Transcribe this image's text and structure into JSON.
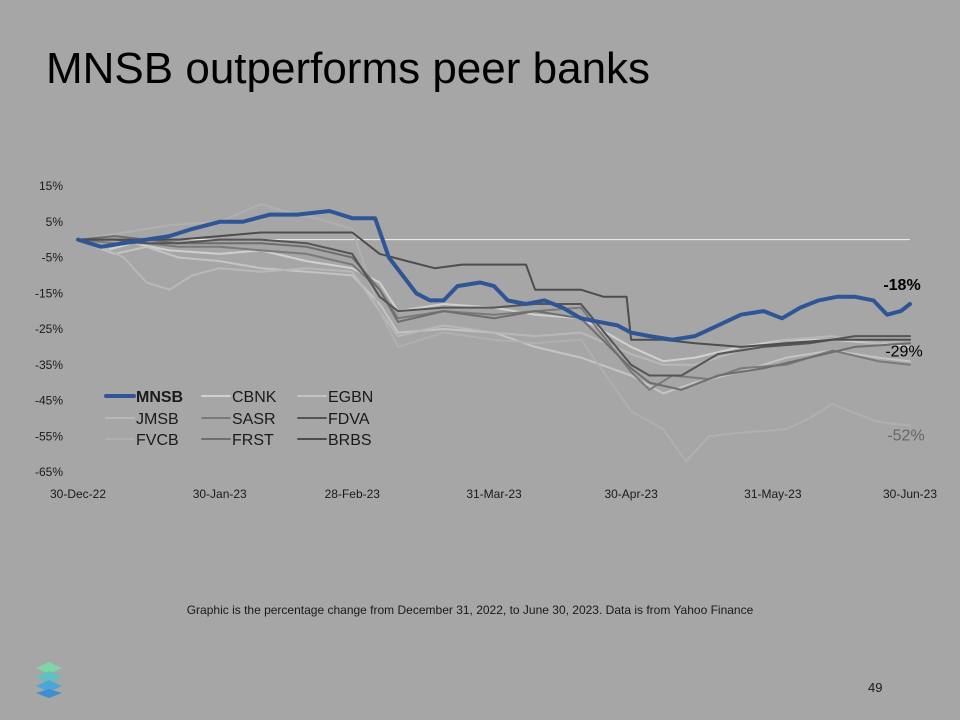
{
  "title": "MNSB outperforms peer banks",
  "footnote": "Graphic is the percentage change from December 31, 2022, to June 30, 2023. Data is from Yahoo Finance",
  "page_number": "49",
  "logo_icon": "stacked-layers-logo",
  "chart_data": {
    "type": "line",
    "title": "",
    "xlabel": "",
    "ylabel": "",
    "ylim": [
      -65,
      15
    ],
    "yticks": [
      15,
      5,
      -5,
      -15,
      -25,
      -35,
      -45,
      -55,
      -65
    ],
    "ytick_labels": [
      "15%",
      "5%",
      "-5%",
      "-15%",
      "-25%",
      "-35%",
      "-45%",
      "-55%",
      "-65%"
    ],
    "xlim": [
      0,
      182
    ],
    "xticks": [
      0,
      31,
      60,
      91,
      121,
      152,
      182
    ],
    "xtick_labels": [
      "30-Dec-22",
      "30-Jan-23",
      "28-Feb-23",
      "31-Mar-23",
      "30-Apr-23",
      "31-May-23",
      "30-Jun-23"
    ],
    "x_unit": "days since 30-Dec-22",
    "zero_line": true,
    "legend_position": "lower-left",
    "annotations": [
      {
        "text": "-18%",
        "x": 182,
        "y": -18,
        "bold": true,
        "color": "#000000"
      },
      {
        "text": "-29%",
        "x": 182,
        "y": -29,
        "bold": false,
        "color": "#000000"
      },
      {
        "text": "-52%",
        "x": 182,
        "y": -52,
        "bold": false,
        "color": "#666666"
      }
    ],
    "series": [
      {
        "name": "CBNK",
        "color": "#d0d0d0",
        "width": 2,
        "points": [
          [
            0,
            0
          ],
          [
            6,
            -3
          ],
          [
            12,
            -1
          ],
          [
            20,
            -3
          ],
          [
            31,
            -4
          ],
          [
            40,
            -3
          ],
          [
            50,
            -6
          ],
          [
            60,
            -8
          ],
          [
            66,
            -12
          ],
          [
            70,
            -20
          ],
          [
            80,
            -18
          ],
          [
            91,
            -19
          ],
          [
            100,
            -21
          ],
          [
            110,
            -22
          ],
          [
            121,
            -30
          ],
          [
            128,
            -34
          ],
          [
            135,
            -33
          ],
          [
            145,
            -30
          ],
          [
            155,
            -28
          ],
          [
            165,
            -28
          ],
          [
            175,
            -29
          ],
          [
            182,
            -30
          ]
        ]
      },
      {
        "name": "EGBN",
        "color": "#c4c4c4",
        "width": 2,
        "points": [
          [
            0,
            0
          ],
          [
            8,
            -4
          ],
          [
            15,
            -2
          ],
          [
            22,
            -5
          ],
          [
            31,
            -6
          ],
          [
            40,
            -8
          ],
          [
            50,
            -9
          ],
          [
            60,
            -10
          ],
          [
            66,
            -18
          ],
          [
            70,
            -26
          ],
          [
            80,
            -25
          ],
          [
            91,
            -26
          ],
          [
            100,
            -30
          ],
          [
            110,
            -33
          ],
          [
            121,
            -38
          ],
          [
            128,
            -43
          ],
          [
            135,
            -40
          ],
          [
            145,
            -37
          ],
          [
            155,
            -33
          ],
          [
            165,
            -31
          ],
          [
            175,
            -33
          ],
          [
            182,
            -34
          ]
        ]
      },
      {
        "name": "JMSB",
        "color": "#b8b8b8",
        "width": 2,
        "points": [
          [
            0,
            0
          ],
          [
            5,
            -2
          ],
          [
            10,
            -5
          ],
          [
            15,
            -12
          ],
          [
            20,
            -14
          ],
          [
            25,
            -10
          ],
          [
            31,
            -8
          ],
          [
            40,
            -9
          ],
          [
            50,
            -8
          ],
          [
            60,
            -9
          ],
          [
            66,
            -20
          ],
          [
            70,
            -27
          ],
          [
            80,
            -24
          ],
          [
            91,
            -26
          ],
          [
            100,
            -27
          ],
          [
            110,
            -26
          ],
          [
            121,
            -32
          ],
          [
            128,
            -35
          ],
          [
            135,
            -35
          ],
          [
            145,
            -31
          ],
          [
            155,
            -28
          ],
          [
            165,
            -27
          ],
          [
            175,
            -29
          ],
          [
            182,
            -28
          ]
        ]
      },
      {
        "name": "FVCB",
        "color": "#b0b0b0",
        "width": 2,
        "points": [
          [
            0,
            0
          ],
          [
            10,
            2
          ],
          [
            20,
            4
          ],
          [
            31,
            5
          ],
          [
            40,
            10
          ],
          [
            45,
            8
          ],
          [
            52,
            6
          ],
          [
            60,
            3
          ],
          [
            66,
            -20
          ],
          [
            70,
            -30
          ],
          [
            80,
            -26
          ],
          [
            91,
            -28
          ],
          [
            100,
            -29
          ],
          [
            110,
            -28
          ],
          [
            121,
            -48
          ],
          [
            128,
            -53
          ],
          [
            133,
            -62
          ],
          [
            138,
            -55
          ],
          [
            145,
            -54
          ],
          [
            155,
            -53
          ],
          [
            160,
            -50
          ],
          [
            165,
            -46
          ],
          [
            175,
            -51
          ],
          [
            182,
            -52
          ]
        ]
      },
      {
        "name": "SASR",
        "color": "#7a7a7a",
        "width": 2,
        "points": [
          [
            0,
            0
          ],
          [
            8,
            -1
          ],
          [
            15,
            -1
          ],
          [
            22,
            -2
          ],
          [
            31,
            -2
          ],
          [
            40,
            -3
          ],
          [
            50,
            -4
          ],
          [
            60,
            -7
          ],
          [
            66,
            -14
          ],
          [
            70,
            -22
          ],
          [
            80,
            -20
          ],
          [
            91,
            -21
          ],
          [
            100,
            -20
          ],
          [
            110,
            -19
          ],
          [
            121,
            -37
          ],
          [
            125,
            -42
          ],
          [
            130,
            -38
          ],
          [
            138,
            -39
          ],
          [
            145,
            -36
          ],
          [
            155,
            -35
          ],
          [
            165,
            -31
          ],
          [
            175,
            -34
          ],
          [
            182,
            -35
          ]
        ]
      },
      {
        "name": "FRST",
        "color": "#6e6e6e",
        "width": 2,
        "points": [
          [
            0,
            0
          ],
          [
            8,
            1
          ],
          [
            15,
            0
          ],
          [
            22,
            -1
          ],
          [
            31,
            -1
          ],
          [
            40,
            -1
          ],
          [
            50,
            -2
          ],
          [
            60,
            -5
          ],
          [
            66,
            -14
          ],
          [
            70,
            -23
          ],
          [
            80,
            -20
          ],
          [
            91,
            -22
          ],
          [
            100,
            -20
          ],
          [
            110,
            -22
          ],
          [
            121,
            -36
          ],
          [
            125,
            -40
          ],
          [
            132,
            -42
          ],
          [
            140,
            -38
          ],
          [
            150,
            -36
          ],
          [
            160,
            -33
          ],
          [
            170,
            -30
          ],
          [
            182,
            -29
          ]
        ]
      },
      {
        "name": "FDVA",
        "color": "#555555",
        "width": 2,
        "points": [
          [
            0,
            0
          ],
          [
            8,
            0
          ],
          [
            15,
            -1
          ],
          [
            22,
            -1
          ],
          [
            31,
            0
          ],
          [
            40,
            0
          ],
          [
            50,
            -1
          ],
          [
            60,
            -4
          ],
          [
            66,
            -16
          ],
          [
            70,
            -20
          ],
          [
            80,
            -19
          ],
          [
            91,
            -19
          ],
          [
            100,
            -18
          ],
          [
            110,
            -18
          ],
          [
            121,
            -35
          ],
          [
            125,
            -38
          ],
          [
            132,
            -38
          ],
          [
            140,
            -32
          ],
          [
            150,
            -30
          ],
          [
            160,
            -29
          ],
          [
            170,
            -27
          ],
          [
            182,
            -27
          ]
        ]
      },
      {
        "name": "BRBS",
        "color": "#4d4d4d",
        "width": 2,
        "points": [
          [
            0,
            0
          ],
          [
            8,
            0
          ],
          [
            15,
            0
          ],
          [
            22,
            0
          ],
          [
            31,
            1
          ],
          [
            40,
            2
          ],
          [
            50,
            2
          ],
          [
            60,
            2
          ],
          [
            66,
            -4
          ],
          [
            72,
            -6
          ],
          [
            78,
            -8
          ],
          [
            84,
            -7
          ],
          [
            91,
            -7
          ],
          [
            98,
            -7
          ],
          [
            100,
            -14
          ],
          [
            110,
            -14
          ],
          [
            115,
            -16
          ],
          [
            120,
            -16
          ],
          [
            121,
            -28
          ],
          [
            128,
            -28
          ],
          [
            135,
            -29
          ],
          [
            145,
            -30
          ],
          [
            155,
            -29
          ],
          [
            165,
            -28
          ],
          [
            175,
            -28
          ],
          [
            182,
            -28
          ]
        ]
      },
      {
        "name": "MNSB",
        "color": "#2f5597",
        "width": 4,
        "points": [
          [
            0,
            0
          ],
          [
            5,
            -2
          ],
          [
            10,
            -1
          ],
          [
            15,
            0
          ],
          [
            20,
            1
          ],
          [
            25,
            3
          ],
          [
            31,
            5
          ],
          [
            36,
            5
          ],
          [
            42,
            7
          ],
          [
            48,
            7
          ],
          [
            55,
            8
          ],
          [
            60,
            6
          ],
          [
            65,
            6
          ],
          [
            68,
            -5
          ],
          [
            71,
            -10
          ],
          [
            74,
            -15
          ],
          [
            77,
            -17
          ],
          [
            80,
            -17
          ],
          [
            83,
            -13
          ],
          [
            88,
            -12
          ],
          [
            91,
            -13
          ],
          [
            94,
            -17
          ],
          [
            98,
            -18
          ],
          [
            102,
            -17
          ],
          [
            106,
            -19
          ],
          [
            110,
            -22
          ],
          [
            114,
            -23
          ],
          [
            118,
            -24
          ],
          [
            121,
            -26
          ],
          [
            125,
            -27
          ],
          [
            130,
            -28
          ],
          [
            135,
            -27
          ],
          [
            140,
            -24
          ],
          [
            145,
            -21
          ],
          [
            150,
            -20
          ],
          [
            154,
            -22
          ],
          [
            158,
            -19
          ],
          [
            162,
            -17
          ],
          [
            166,
            -16
          ],
          [
            170,
            -16
          ],
          [
            174,
            -17
          ],
          [
            177,
            -21
          ],
          [
            180,
            -20
          ],
          [
            182,
            -18
          ]
        ]
      }
    ]
  }
}
